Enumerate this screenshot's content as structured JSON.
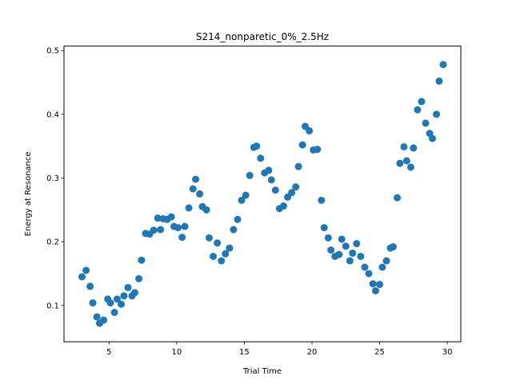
{
  "chart_data": {
    "type": "scatter",
    "title": "S214_nonparetic_0%_2.5Hz",
    "xlabel": "Trial Time",
    "ylabel": "Energy at Resonance",
    "xlim": [
      1.67,
      31.0
    ],
    "ylim": [
      0.043,
      0.507
    ],
    "xticks": [
      5,
      10,
      15,
      20,
      25,
      30
    ],
    "xtick_labels": [
      "5",
      "10",
      "15",
      "20",
      "25",
      "30"
    ],
    "yticks": [
      0.1,
      0.2,
      0.3,
      0.4,
      0.5
    ],
    "ytick_labels": [
      "0.1",
      "0.2",
      "0.3",
      "0.4",
      "0.5"
    ],
    "grid": false,
    "marker_color": "#1f77b4",
    "points": [
      {
        "x": 3.0,
        "y": 0.145
      },
      {
        "x": 3.3,
        "y": 0.155
      },
      {
        "x": 3.6,
        "y": 0.13
      },
      {
        "x": 3.8,
        "y": 0.104
      },
      {
        "x": 4.1,
        "y": 0.082
      },
      {
        "x": 4.3,
        "y": 0.072
      },
      {
        "x": 4.6,
        "y": 0.077
      },
      {
        "x": 4.9,
        "y": 0.11
      },
      {
        "x": 5.1,
        "y": 0.104
      },
      {
        "x": 5.4,
        "y": 0.089
      },
      {
        "x": 5.6,
        "y": 0.11
      },
      {
        "x": 5.9,
        "y": 0.102
      },
      {
        "x": 6.1,
        "y": 0.115
      },
      {
        "x": 6.4,
        "y": 0.128
      },
      {
        "x": 6.7,
        "y": 0.115
      },
      {
        "x": 6.9,
        "y": 0.12
      },
      {
        "x": 7.2,
        "y": 0.142
      },
      {
        "x": 7.4,
        "y": 0.171
      },
      {
        "x": 7.7,
        "y": 0.213
      },
      {
        "x": 8.0,
        "y": 0.212
      },
      {
        "x": 8.3,
        "y": 0.218
      },
      {
        "x": 8.6,
        "y": 0.237
      },
      {
        "x": 8.8,
        "y": 0.219
      },
      {
        "x": 9.0,
        "y": 0.236
      },
      {
        "x": 9.3,
        "y": 0.235
      },
      {
        "x": 9.6,
        "y": 0.239
      },
      {
        "x": 9.8,
        "y": 0.224
      },
      {
        "x": 10.1,
        "y": 0.222
      },
      {
        "x": 10.4,
        "y": 0.207
      },
      {
        "x": 10.6,
        "y": 0.224
      },
      {
        "x": 10.9,
        "y": 0.253
      },
      {
        "x": 11.2,
        "y": 0.283
      },
      {
        "x": 11.4,
        "y": 0.298
      },
      {
        "x": 11.7,
        "y": 0.275
      },
      {
        "x": 11.9,
        "y": 0.255
      },
      {
        "x": 12.2,
        "y": 0.25
      },
      {
        "x": 12.4,
        "y": 0.206
      },
      {
        "x": 12.7,
        "y": 0.177
      },
      {
        "x": 13.0,
        "y": 0.198
      },
      {
        "x": 13.3,
        "y": 0.17
      },
      {
        "x": 13.6,
        "y": 0.181
      },
      {
        "x": 13.9,
        "y": 0.19
      },
      {
        "x": 14.2,
        "y": 0.219
      },
      {
        "x": 14.5,
        "y": 0.235
      },
      {
        "x": 14.8,
        "y": 0.265
      },
      {
        "x": 15.1,
        "y": 0.273
      },
      {
        "x": 15.4,
        "y": 0.304
      },
      {
        "x": 15.7,
        "y": 0.348
      },
      {
        "x": 15.9,
        "y": 0.35
      },
      {
        "x": 16.2,
        "y": 0.331
      },
      {
        "x": 16.5,
        "y": 0.308
      },
      {
        "x": 16.8,
        "y": 0.312
      },
      {
        "x": 17.0,
        "y": 0.297
      },
      {
        "x": 17.3,
        "y": 0.281
      },
      {
        "x": 17.6,
        "y": 0.252
      },
      {
        "x": 17.9,
        "y": 0.256
      },
      {
        "x": 18.2,
        "y": 0.27
      },
      {
        "x": 18.5,
        "y": 0.277
      },
      {
        "x": 18.8,
        "y": 0.286
      },
      {
        "x": 19.0,
        "y": 0.318
      },
      {
        "x": 19.3,
        "y": 0.352
      },
      {
        "x": 19.5,
        "y": 0.381
      },
      {
        "x": 19.8,
        "y": 0.374
      },
      {
        "x": 20.1,
        "y": 0.344
      },
      {
        "x": 20.4,
        "y": 0.345
      },
      {
        "x": 20.7,
        "y": 0.265
      },
      {
        "x": 20.9,
        "y": 0.222
      },
      {
        "x": 21.2,
        "y": 0.206
      },
      {
        "x": 21.4,
        "y": 0.187
      },
      {
        "x": 21.7,
        "y": 0.177
      },
      {
        "x": 22.0,
        "y": 0.18
      },
      {
        "x": 22.2,
        "y": 0.204
      },
      {
        "x": 22.5,
        "y": 0.193
      },
      {
        "x": 22.8,
        "y": 0.17
      },
      {
        "x": 23.0,
        "y": 0.182
      },
      {
        "x": 23.3,
        "y": 0.197
      },
      {
        "x": 23.6,
        "y": 0.177
      },
      {
        "x": 23.9,
        "y": 0.16
      },
      {
        "x": 24.2,
        "y": 0.15
      },
      {
        "x": 24.5,
        "y": 0.134
      },
      {
        "x": 24.7,
        "y": 0.123
      },
      {
        "x": 25.0,
        "y": 0.133
      },
      {
        "x": 25.2,
        "y": 0.16
      },
      {
        "x": 25.5,
        "y": 0.17
      },
      {
        "x": 25.8,
        "y": 0.19
      },
      {
        "x": 26.0,
        "y": 0.192
      },
      {
        "x": 26.3,
        "y": 0.269
      },
      {
        "x": 26.5,
        "y": 0.323
      },
      {
        "x": 26.8,
        "y": 0.349
      },
      {
        "x": 27.0,
        "y": 0.327
      },
      {
        "x": 27.3,
        "y": 0.317
      },
      {
        "x": 27.5,
        "y": 0.347
      },
      {
        "x": 27.8,
        "y": 0.407
      },
      {
        "x": 28.1,
        "y": 0.42
      },
      {
        "x": 28.4,
        "y": 0.386
      },
      {
        "x": 28.7,
        "y": 0.37
      },
      {
        "x": 28.9,
        "y": 0.362
      },
      {
        "x": 29.2,
        "y": 0.4
      },
      {
        "x": 29.4,
        "y": 0.452
      },
      {
        "x": 29.7,
        "y": 0.478
      }
    ]
  }
}
